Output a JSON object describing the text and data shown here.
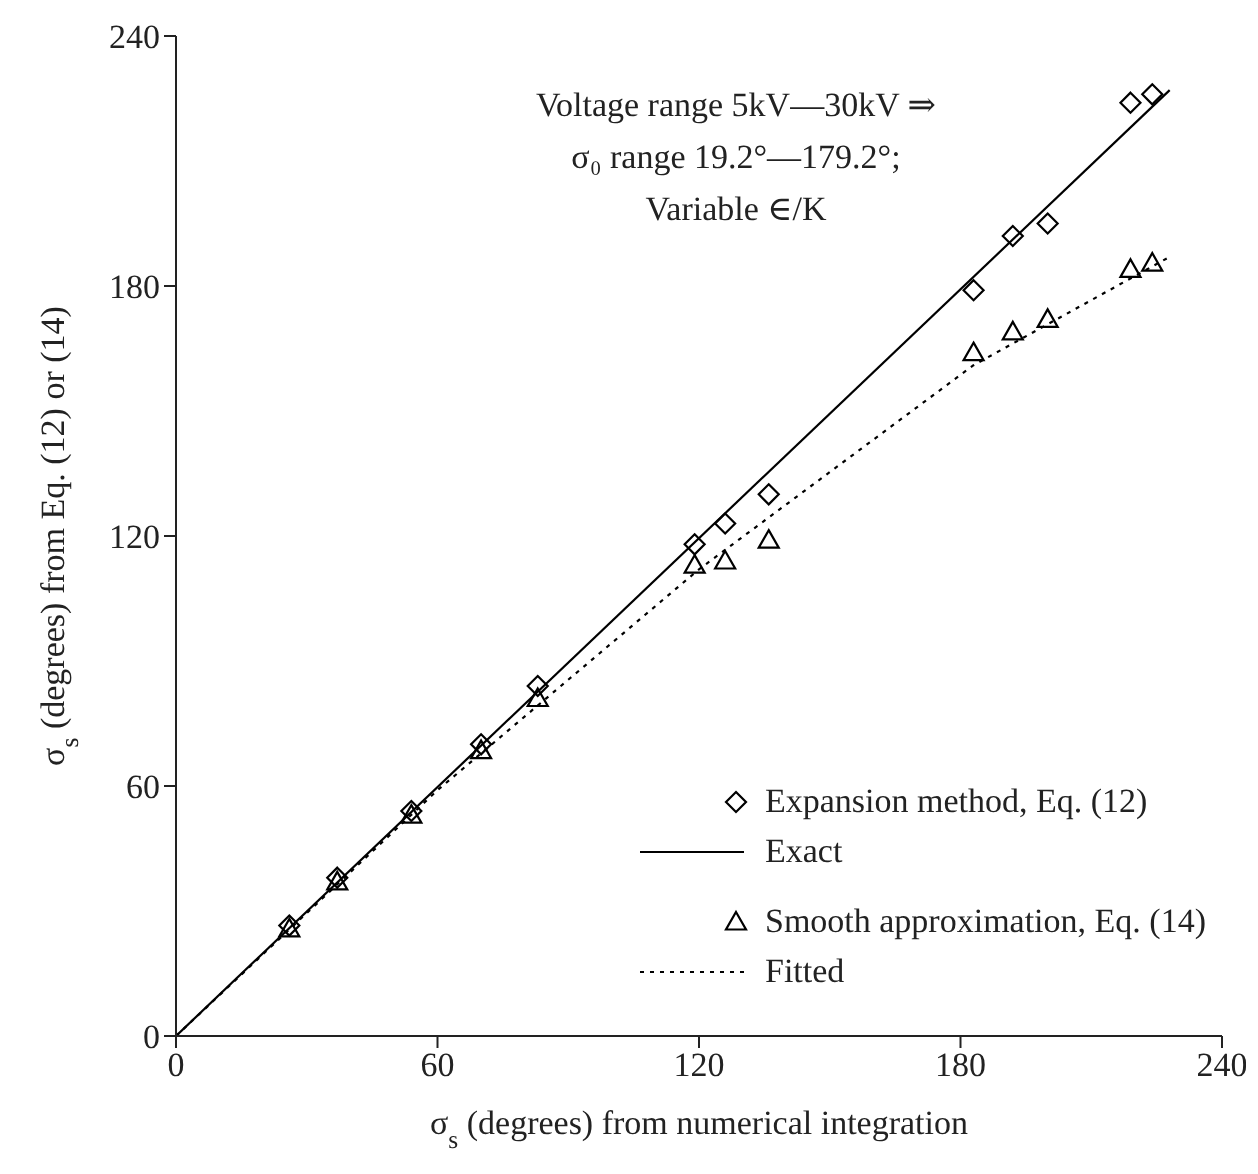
{
  "chart_data": {
    "type": "scatter",
    "xlabel": "σ$_{s}$ (degrees) from numerical integration",
    "ylabel": "σ$_{s}$ (degrees) from Eq. (12) or (14)",
    "annotations": [
      "Voltage range 5kV—30kV ⇒",
      "σ₀ range 19.2°—179.2°;",
      "Variable ∈/K"
    ],
    "xlim": [
      0,
      240
    ],
    "xticks": [
      0,
      60,
      120,
      180,
      240
    ],
    "ylim": [
      0,
      240
    ],
    "yticks": [
      0,
      60,
      120,
      180,
      240
    ],
    "grid": false,
    "legend": "bottom right",
    "series": [
      {
        "name": "Expansion method, Eq. (12)",
        "type": "scatter",
        "marker": "diamond",
        "color": "#000000",
        "x": [
          26,
          37,
          54,
          70,
          83,
          119,
          126,
          136,
          183,
          192,
          200,
          219,
          224
        ],
        "values": [
          26.5,
          38,
          54,
          70,
          84,
          118,
          123,
          130,
          179,
          192,
          195,
          224,
          226
        ]
      },
      {
        "name": "Exact",
        "type": "line",
        "marker": "none",
        "line_style": "solid",
        "color": "#000000",
        "x": [
          0,
          228
        ],
        "values": [
          0,
          227
        ]
      },
      {
        "name": "Smooth approximation, Eq. (14)",
        "type": "scatter",
        "marker": "triangle",
        "color": "#000000",
        "x": [
          26,
          37,
          54,
          70,
          83,
          119,
          126,
          136,
          183,
          192,
          200,
          219,
          224
        ],
        "values": [
          25.7,
          37,
          53,
          68.5,
          81,
          113,
          114,
          119,
          164,
          169,
          172,
          184,
          185.5
        ]
      },
      {
        "name": "Fitted",
        "type": "line",
        "marker": "none",
        "line_style": "dotted",
        "color": "#000000",
        "x": [
          0,
          60,
          120,
          183,
          228
        ],
        "values": [
          0,
          59,
          112,
          161,
          187
        ]
      }
    ]
  }
}
